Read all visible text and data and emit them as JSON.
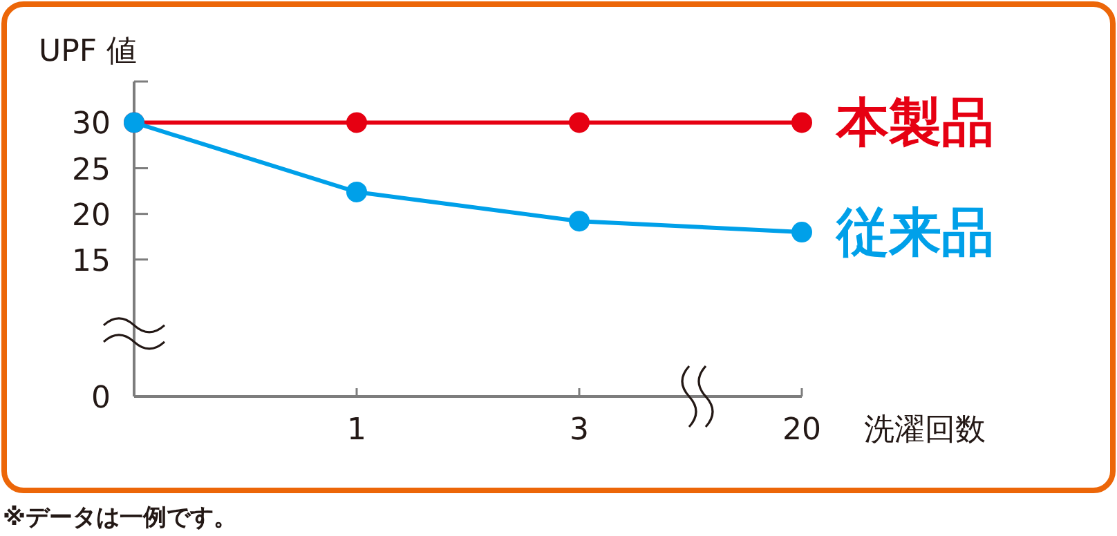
{
  "chart_data": {
    "type": "line",
    "xlabel": "洗濯回数",
    "ylabel": "UPF 値",
    "categories": [
      null,
      "1",
      "3",
      "20"
    ],
    "series": [
      {
        "name": "本製品",
        "color": "#e60012",
        "values": [
          30,
          30,
          30,
          30
        ]
      },
      {
        "name": "従来品",
        "color": "#00a0e9",
        "values": [
          30,
          22.4,
          19.2,
          18.0
        ]
      }
    ],
    "ylim": [
      0,
      34.5
    ],
    "yticks": [
      0,
      15,
      20,
      25,
      30
    ],
    "marker": "circle",
    "legend": "right",
    "line_style": "solid",
    "grid": false,
    "annotations": [
      "※データは一例です。"
    ]
  }
}
